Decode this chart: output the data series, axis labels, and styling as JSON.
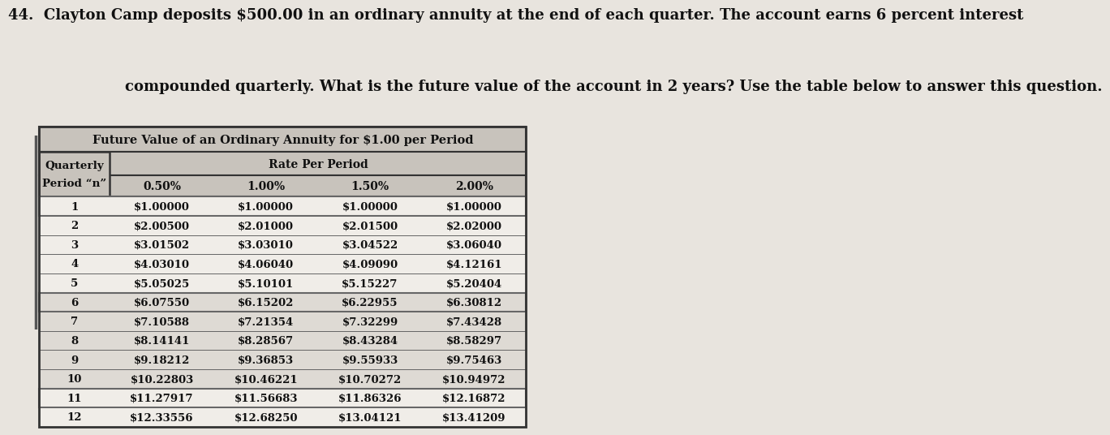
{
  "question_line1": "44.  Clayton Camp deposits $500.00 in an ordinary annuity at the end of each quarter. The account earns 6 percent interest",
  "question_line2": "        compounded quarterly. What is the future value of the account in 2 years? Use the table below to answer this question.",
  "table_title": "Future Value of an Ordinary Annuity for $1.00 per Period",
  "col_header_rate": "Rate Per Period",
  "col_header_left_line1": "Quarterly",
  "col_header_left_line2": "Period “n”",
  "col_headers": [
    "0.50%",
    "1.00%",
    "1.50%",
    "2.00%"
  ],
  "periods": [
    "1",
    "2",
    "3",
    "4",
    "5",
    "6",
    "7",
    "8",
    "9",
    "10",
    "11",
    "12"
  ],
  "data_050": [
    "$1.00000",
    "$2.00500",
    "$3.01502",
    "$4.03010",
    "$5.05025",
    "$6.07550",
    "$7.10588",
    "$8.14141",
    "$9.18212",
    "$10.22803",
    "$11.27917",
    "$12.33556"
  ],
  "data_100": [
    "$1.00000",
    "$2.01000",
    "$3.03010",
    "$4.06040",
    "$5.10101",
    "$6.15202",
    "$7.21354",
    "$8.28567",
    "$9.36853",
    "$10.46221",
    "$11.56683",
    "$12.68250"
  ],
  "data_150": [
    "$1.00000",
    "$2.01500",
    "$3.04522",
    "$4.09090",
    "$5.15227",
    "$6.22955",
    "$7.32299",
    "$8.43284",
    "$9.55933",
    "$10.70272",
    "$11.86326",
    "$13.04121"
  ],
  "data_200": [
    "$1.00000",
    "$2.02000",
    "$3.06040",
    "$4.12161",
    "$5.20404",
    "$6.30812",
    "$7.43428",
    "$8.58297",
    "$9.75463",
    "$10.94972",
    "$12.16872",
    "$13.41209"
  ],
  "bg_color": "#e8e4de",
  "table_bg_white": "#f0ede8",
  "table_bg_gray": "#dedad4",
  "header_bg": "#c8c3bc",
  "border_color": "#666666",
  "border_dark": "#333333",
  "text_color": "#111111",
  "vbar_color": "#555555",
  "question_fontsize": 13.0,
  "table_title_fontsize": 10.5,
  "header_fontsize": 10.0,
  "data_fontsize": 9.5,
  "group_breaks": [
    5,
    10
  ]
}
